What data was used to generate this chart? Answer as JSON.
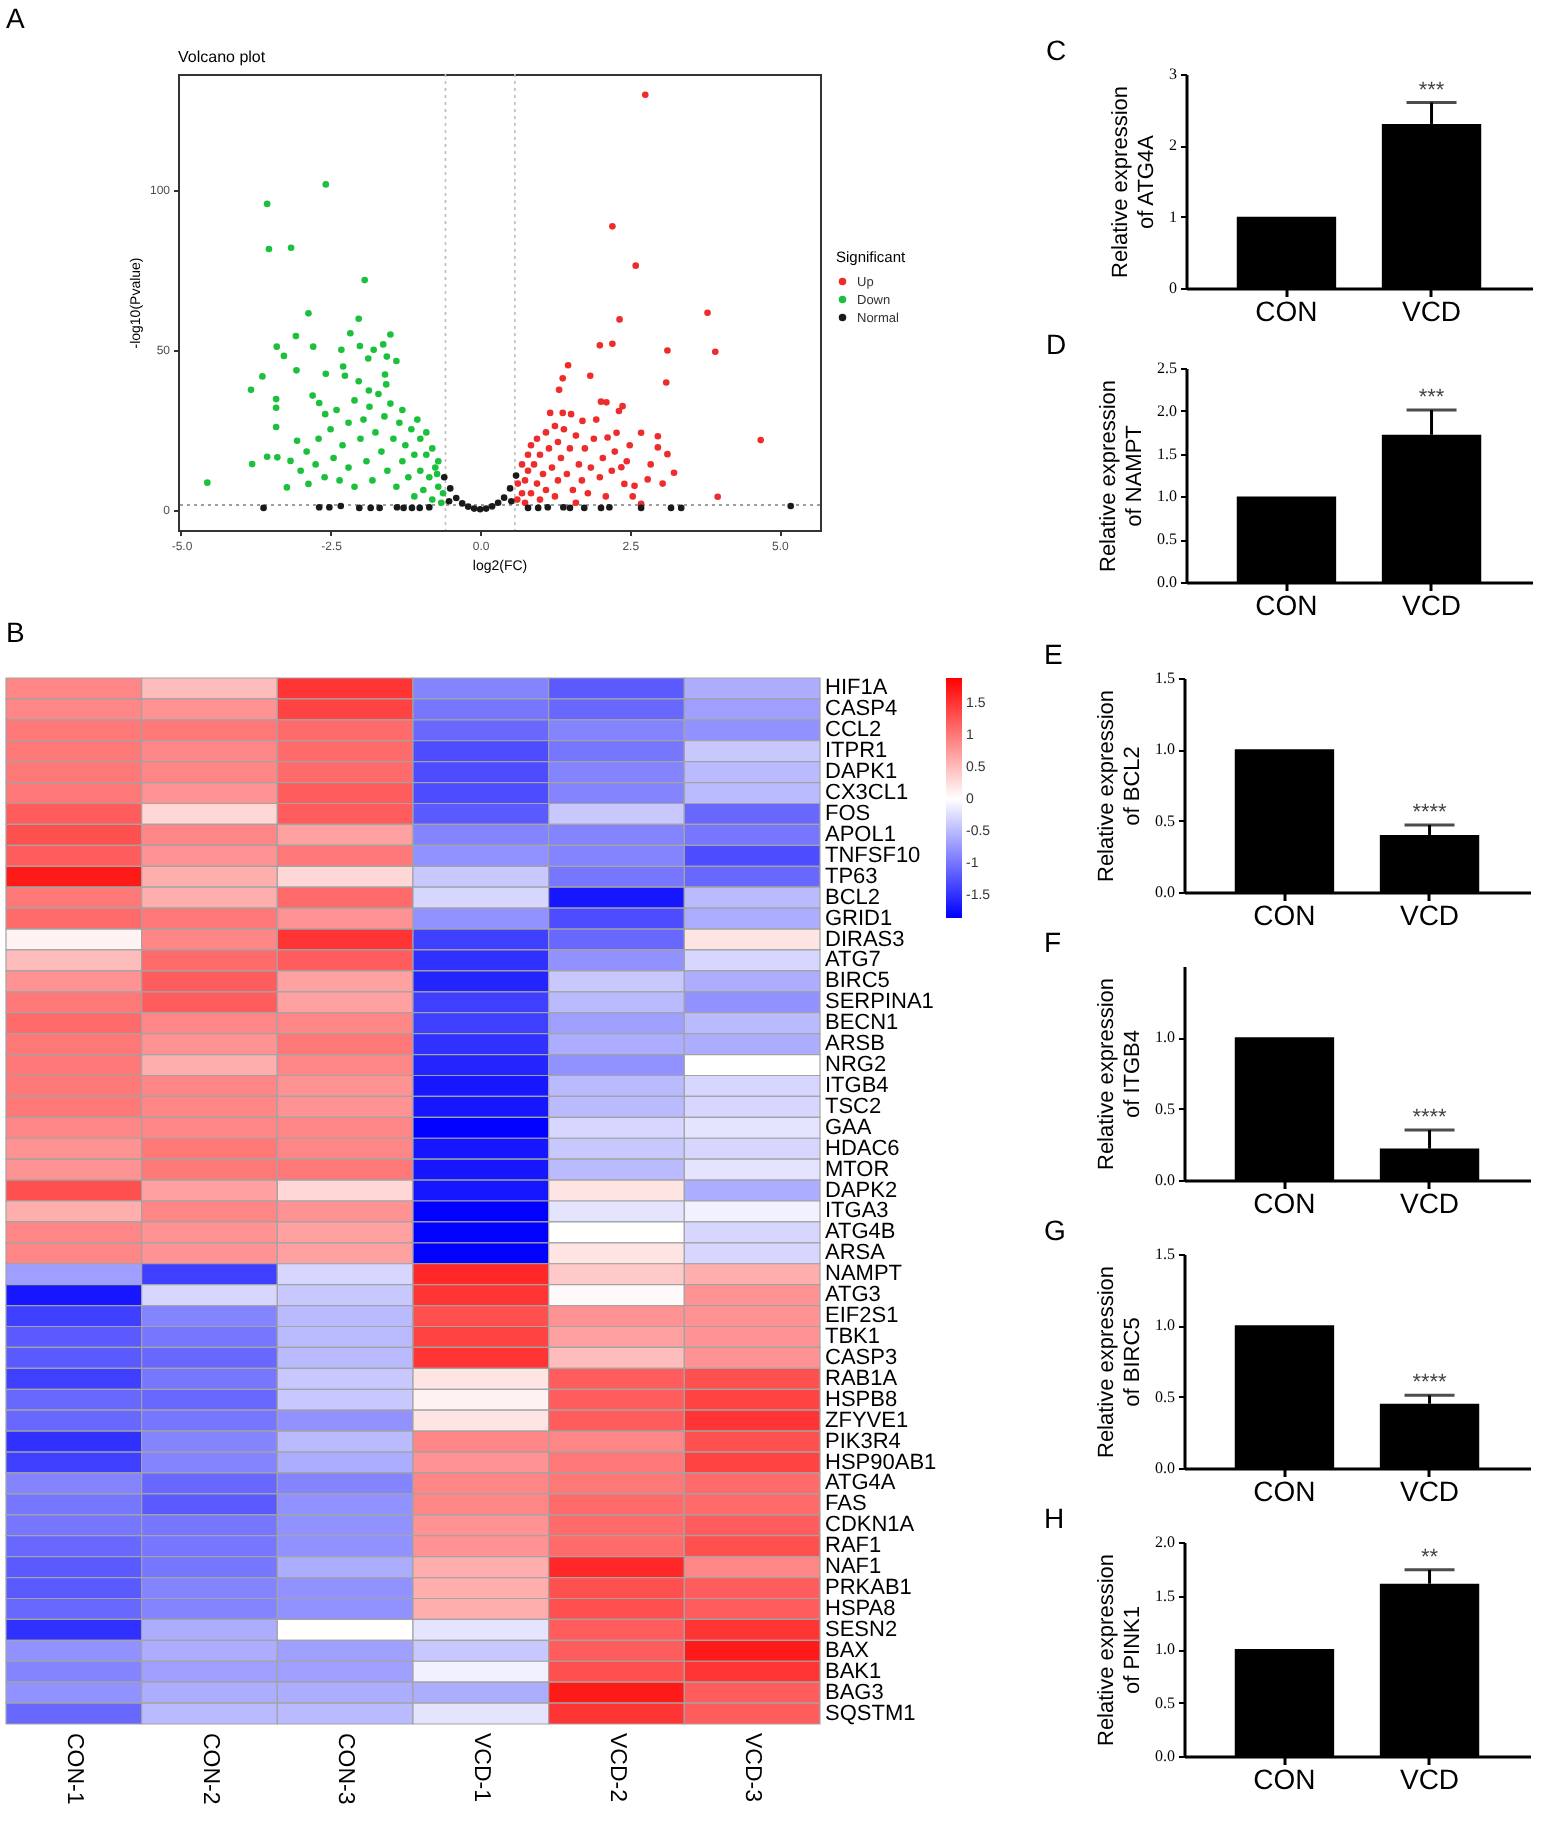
{
  "chart_data": [
    {
      "type": "scatter",
      "title": "Volcano plot",
      "annotations": [
        "A"
      ],
      "xlabel": "log2(FC)",
      "ylabel": "-log10(Pvalue)",
      "legend_title": "Significant",
      "legend": "right",
      "marker": "circle",
      "xlim": [
        -5.05,
        5.68
      ],
      "ylim": [
        -6.5,
        136
      ],
      "xticks": [
        {
          "value": -5,
          "label": "-5.0"
        },
        -2.5,
        {
          "value": 0,
          "label": "0.0"
        },
        2.5,
        {
          "value": 5,
          "label": "5.0"
        }
      ],
      "yticks": [
        0,
        50,
        100
      ],
      "ref_lines": [
        {
          "axis": "x",
          "value": -0.58,
          "color": "#bdbdbd",
          "line_style": "dotted"
        },
        {
          "axis": "x",
          "value": 0.58,
          "color": "#bdbdbd",
          "line_style": "dotted"
        },
        {
          "axis": "y",
          "value": 1.3,
          "color": "#7f7f7f",
          "line_style": "dotted"
        }
      ],
      "series": [
        {
          "name": "Up",
          "color": "#ee2c2c",
          "x": [
            2.76,
            2.21,
            2.6,
            3.8,
            2.33,
            3.93,
            3.13,
            2.21,
            2.0,
            3.11,
            1.47,
            1.38,
            1.84,
            1.32,
            4.69,
            3.97,
            2.69,
            2.97,
            3.13,
            2.97,
            2.69,
            2.38,
            2.32,
            3.24,
            2.8,
            2.58,
            2.41,
            2.36,
            2.02,
            2.11,
            1.94,
            2.13,
            2.28,
            1.71,
            1.52,
            1.38,
            1.17,
            0.62,
            0.63,
            1.6,
            0.7,
            0.7,
            0.75,
            0.75,
            0.8,
            0.8,
            0.85,
            0.85,
            0.9,
            0.95,
            0.95,
            1.0,
            1.0,
            1.05,
            1.1,
            1.1,
            1.15,
            1.2,
            1.25,
            1.25,
            1.3,
            1.3,
            1.35,
            1.4,
            1.45,
            1.5,
            1.55,
            1.6,
            1.65,
            1.7,
            1.75,
            1.8,
            1.85,
            1.9,
            2.0,
            2.05,
            2.1,
            2.2,
            2.25,
            2.45,
            2.5,
            2.55,
            2.85,
            3.05
          ],
          "values": [
            129.5,
            88.4,
            76.1,
            61.4,
            59.3,
            49.2,
            49.6,
            51.7,
            51.2,
            39.6,
            45.0,
            40.9,
            41.7,
            37.3,
            21.6,
            3.9,
            1.7,
            19.3,
            17.2,
            22.8,
            23.9,
            32.2,
            30.7,
            11.4,
            9.3,
            7.3,
            7.9,
            13.1,
            33.6,
            33.4,
            28.0,
            22.4,
            23.9,
            27.6,
            29.7,
            30.1,
            30.1,
            3,
            8,
            2,
            5,
            14,
            2,
            9,
            17,
            12,
            5,
            20,
            14,
            8,
            22,
            3,
            17,
            11,
            24,
            6,
            19,
            13,
            26,
            4,
            9,
            21,
            16,
            25,
            11,
            19,
            6,
            23,
            14,
            9,
            19,
            5,
            13,
            22,
            10,
            16,
            4,
            12,
            18,
            15,
            20,
            4,
            14,
            8
          ]
        },
        {
          "name": "Down",
          "color": "#1bc13c",
          "x": [
            -4.56,
            -3.83,
            -3.64,
            -3.56,
            -3.53,
            -3.16,
            -2.58,
            -1.93,
            -2.87,
            -2.03,
            -3.4,
            -3.28,
            -3.08,
            -2.79,
            -3.07,
            -3.81,
            -3.56,
            -3.39,
            -3.41,
            -3.41,
            -3.41,
            -2.58,
            -2.32,
            -2.17,
            -2.01,
            -1.87,
            -2.29,
            -2.26,
            -2.03,
            -1.78,
            -1.62,
            -1.5,
            -1.56,
            -1.4,
            -1.59,
            -1.86,
            -1.57,
            -2.8,
            -2.69,
            -2.59,
            -3.06,
            -3.17,
            -3.23,
            -2.87,
            -3.0,
            -2.9,
            -2.75,
            -2.7,
            -2.6,
            -2.5,
            -2.45,
            -2.4,
            -2.35,
            -2.3,
            -2.2,
            -2.2,
            -2.1,
            -2.1,
            -2.0,
            -1.95,
            -1.9,
            -1.85,
            -1.8,
            -1.75,
            -1.7,
            -1.65,
            -1.6,
            -1.55,
            -1.5,
            -1.45,
            -1.4,
            -1.35,
            -1.3,
            -1.3,
            -1.25,
            -1.2,
            -1.15,
            -1.1,
            -1.1,
            -1.05,
            -1.0,
            -1.0,
            -0.95,
            -0.9,
            -0.9,
            -0.85,
            -0.8,
            -0.8,
            -0.75,
            -0.7,
            -0.7,
            -0.65,
            -0.72,
            -0.62
          ],
          "values": [
            8.3,
            37.3,
            41.5,
            95.4,
            81.3,
            81.7,
            101.5,
            71.6,
            61.2,
            59.5,
            50.8,
            47.9,
            54.1,
            50.8,
            43.4,
            14.1,
            16.4,
            16.2,
            34.4,
            31.7,
            25.7,
            42.3,
            49.8,
            55.0,
            51.0,
            47.1,
            44.6,
            41.7,
            40.0,
            49.8,
            51.5,
            54.6,
            47.7,
            46.3,
            42.1,
            37.1,
            39.0,
            35.5,
            33.2,
            29.7,
            21.4,
            15.1,
            6.8,
            7.9,
            12,
            18,
            14,
            22,
            10,
            25,
            16,
            31,
            9,
            20,
            27,
            13,
            34,
            7,
            22,
            28,
            15,
            32,
            9,
            24,
            36,
            18,
            29,
            12,
            33,
            22,
            7,
            27,
            15,
            31,
            20,
            10,
            25,
            4,
            17,
            28,
            12,
            22,
            6,
            17,
            24,
            10,
            3,
            19,
            13,
            7,
            15,
            2,
            11,
            5
          ]
        },
        {
          "name": "Normal",
          "color": "#1a1a1a",
          "x": [
            -0.6,
            -0.5,
            -0.52,
            -0.4,
            -0.3,
            -0.2,
            -0.1,
            0,
            0.1,
            0.2,
            0.3,
            0.4,
            0.52,
            0.5,
            0.6,
            -3.62,
            -2.69,
            -2.52,
            -2.33,
            -2.02,
            -1.83,
            -1.68,
            -1.39,
            -1.28,
            -1.14,
            -1.01,
            -0.85,
            0.8,
            0.97,
            1.13,
            1.39,
            1.5,
            1.74,
            2.02,
            2.16,
            2.69,
            3.19,
            3.36,
            5.19
          ],
          "values": [
            10,
            6.5,
            2.5,
            3.5,
            1.8,
            0.8,
            0.2,
            0,
            0.2,
            0.9,
            2,
            3.6,
            2.5,
            6.5,
            10.5,
            0.4,
            0.6,
            0.6,
            1.0,
            0.4,
            0.4,
            0.4,
            0.6,
            0.4,
            0.4,
            0.4,
            0.6,
            0.4,
            0.4,
            0.6,
            0.6,
            0.4,
            0.4,
            0.4,
            0.6,
            0.4,
            0.4,
            0.4,
            1.0
          ]
        }
      ]
    },
    {
      "type": "heatmap",
      "annotations": [
        "B"
      ],
      "categories": [
        "CON-1",
        "CON-2",
        "CON-3",
        "VCD-1",
        "VCD-2",
        "VCD-3"
      ],
      "y_categories": [
        "HIF1A",
        "CASP4",
        "CCL2",
        "ITPR1",
        "DAPK1",
        "CX3CL1",
        "FOS",
        "APOL1",
        "TNFSF10",
        "TP63",
        "BCL2",
        "GRID1",
        "DIRAS3",
        "ATG7",
        "BIRC5",
        "SERPINA1",
        "BECN1",
        "ARSB",
        "NRG2",
        "ITGB4",
        "TSC2",
        "GAA",
        "HDAC6",
        "MTOR",
        "DAPK2",
        "ITGA3",
        "ATG4B",
        "ARSA",
        "NAMPT",
        "ATG3",
        "EIF2S1",
        "TBK1",
        "CASP3",
        "RAB1A",
        "HSPB8",
        "ZFYVE1",
        "PIK3R4",
        "HSP90AB1",
        "ATG4A",
        "FAS",
        "CDKN1A",
        "RAF1",
        "NAF1",
        "PRKAB1",
        "HSPA8",
        "SESN2",
        "BAX",
        "BAK1",
        "BAG3",
        "SQSTM1"
      ],
      "cells": [
        [
          0.9,
          0.5,
          1.5,
          -0.9,
          -1.2,
          -0.6
        ],
        [
          0.9,
          0.8,
          1.4,
          -1.0,
          -1.1,
          -0.7
        ],
        [
          1.0,
          1.0,
          1.1,
          -1.1,
          -0.9,
          -0.8
        ],
        [
          1.0,
          0.9,
          1.1,
          -1.3,
          -1.0,
          -0.4
        ],
        [
          1.0,
          0.9,
          1.1,
          -1.3,
          -0.9,
          -0.5
        ],
        [
          1.0,
          0.8,
          1.2,
          -1.3,
          -0.9,
          -0.5
        ],
        [
          1.2,
          0.3,
          1.2,
          -1.2,
          -0.4,
          -1.1
        ],
        [
          1.3,
          0.9,
          0.7,
          -0.9,
          -0.9,
          -1.0
        ],
        [
          1.2,
          0.8,
          1.0,
          -0.8,
          -0.9,
          -1.3
        ],
        [
          1.7,
          0.6,
          0.3,
          -0.4,
          -1.0,
          -1.1
        ],
        [
          1.0,
          0.6,
          1.1,
          -0.3,
          -1.7,
          -0.5
        ],
        [
          1.1,
          1.0,
          0.8,
          -0.8,
          -1.3,
          -0.6
        ],
        [
          0.1,
          0.9,
          1.5,
          -1.4,
          -1.1,
          0.2
        ],
        [
          0.5,
          1.1,
          1.2,
          -1.5,
          -0.8,
          -0.3
        ],
        [
          0.8,
          1.2,
          0.7,
          -1.6,
          -0.4,
          -0.6
        ],
        [
          1.0,
          1.2,
          0.7,
          -1.4,
          -0.5,
          -0.8
        ],
        [
          1.1,
          0.9,
          0.9,
          -1.4,
          -0.7,
          -0.5
        ],
        [
          1.0,
          0.8,
          1.0,
          -1.5,
          -0.6,
          -0.6
        ],
        [
          1.0,
          0.6,
          0.9,
          -1.6,
          -0.8,
          0.0
        ],
        [
          1.0,
          0.9,
          0.8,
          -1.7,
          -0.5,
          -0.3
        ],
        [
          1.0,
          0.9,
          0.8,
          -1.7,
          -0.5,
          -0.3
        ],
        [
          0.9,
          0.9,
          0.9,
          -1.85,
          -0.3,
          -0.2
        ],
        [
          0.8,
          1.0,
          0.9,
          -1.7,
          -0.4,
          -0.3
        ],
        [
          0.8,
          1.0,
          1.0,
          -1.7,
          -0.5,
          -0.2
        ],
        [
          1.3,
          0.7,
          0.3,
          -1.7,
          0.2,
          -0.6
        ],
        [
          0.6,
          0.9,
          0.8,
          -1.85,
          -0.2,
          -0.1
        ],
        [
          0.9,
          0.8,
          0.7,
          -1.85,
          0.0,
          -0.3
        ],
        [
          0.9,
          0.8,
          0.7,
          -1.85,
          0.2,
          -0.3
        ],
        [
          -0.7,
          -1.4,
          -0.3,
          1.6,
          0.4,
          0.6
        ],
        [
          -1.7,
          -0.3,
          -0.4,
          1.5,
          0.05,
          0.8
        ],
        [
          -1.4,
          -0.9,
          -0.5,
          1.3,
          0.8,
          0.8
        ],
        [
          -1.2,
          -1.0,
          -0.5,
          1.4,
          0.7,
          0.8
        ],
        [
          -1.2,
          -1.1,
          -0.5,
          1.5,
          0.5,
          0.8
        ],
        [
          -1.4,
          -1.0,
          -0.4,
          0.2,
          1.2,
          1.3
        ],
        [
          -1.1,
          -1.1,
          -0.4,
          0.1,
          1.2,
          1.4
        ],
        [
          -1.1,
          -1.0,
          -0.8,
          0.2,
          1.2,
          1.5
        ],
        [
          -1.5,
          -0.9,
          -0.5,
          0.9,
          0.9,
          1.3
        ],
        [
          -1.4,
          -0.9,
          -0.6,
          0.8,
          1.0,
          1.4
        ],
        [
          -0.9,
          -1.1,
          -0.9,
          0.9,
          1.0,
          1.1
        ],
        [
          -1.0,
          -1.2,
          -0.8,
          0.9,
          1.1,
          1.1
        ],
        [
          -1.0,
          -1.0,
          -0.8,
          0.8,
          1.1,
          1.2
        ],
        [
          -1.1,
          -1.0,
          -0.8,
          0.8,
          1.1,
          1.3
        ],
        [
          -1.2,
          -1.0,
          -0.6,
          0.6,
          1.6,
          0.9
        ],
        [
          -1.2,
          -0.9,
          -0.8,
          0.6,
          1.3,
          1.2
        ],
        [
          -1.1,
          -0.9,
          -0.8,
          0.6,
          1.3,
          1.2
        ],
        [
          -1.5,
          -0.6,
          0.0,
          -0.2,
          1.2,
          1.5
        ],
        [
          -0.8,
          -0.6,
          -0.7,
          -0.4,
          1.2,
          1.7
        ],
        [
          -0.9,
          -0.7,
          -0.7,
          -0.1,
          1.3,
          1.5
        ],
        [
          -0.8,
          -0.6,
          -0.6,
          -0.6,
          1.7,
          1.2
        ],
        [
          -1.1,
          -0.5,
          -0.5,
          -0.2,
          1.5,
          1.2
        ]
      ],
      "clim": [
        -1.86,
        1.89
      ],
      "cticks": [
        -1.5,
        -1,
        -0.5,
        0,
        0.5,
        1,
        1.5
      ]
    },
    {
      "type": "bar",
      "annotations": [
        "C",
        {
          "text": "***",
          "x": "VCD",
          "y": 2.6
        }
      ],
      "ylabel": "Relative expression of ATG4A",
      "categories": [
        "CON",
        "VCD"
      ],
      "values": [
        1,
        2.3
      ],
      "errors": [
        null,
        [
          2.3,
          2.6
        ]
      ],
      "color": "#000000",
      "ylim": [
        0,
        3
      ],
      "yticks": [
        0,
        1,
        2,
        3
      ]
    },
    {
      "type": "bar",
      "annotations": [
        "D",
        {
          "text": "***",
          "x": "VCD",
          "y": 2.01
        }
      ],
      "ylabel": "Relative expression of NAMPT",
      "categories": [
        "CON",
        "VCD"
      ],
      "values": [
        1,
        1.72
      ],
      "errors": [
        null,
        [
          1.72,
          2.01
        ]
      ],
      "color": "#000000",
      "ylim": [
        0,
        2.5
      ],
      "yticks": [
        {
          "value": 0,
          "label": "0.0"
        },
        0.5,
        {
          "value": 1,
          "label": "1.0"
        },
        1.5,
        {
          "value": 2,
          "label": "2.0"
        },
        2.5
      ]
    },
    {
      "type": "bar",
      "annotations": [
        "E",
        {
          "text": "****",
          "x": "VCD",
          "y": 0.47
        }
      ],
      "ylabel": "Relative expression of BCL2",
      "categories": [
        "CON",
        "VCD"
      ],
      "values": [
        1,
        0.4
      ],
      "errors": [
        null,
        [
          0.4,
          0.47
        ]
      ],
      "color": "#000000",
      "ylim": [
        0,
        1.5
      ],
      "yticks": [
        {
          "value": 0,
          "label": "0.0"
        },
        0.5,
        {
          "value": 1,
          "label": "1.0"
        },
        1.5
      ]
    },
    {
      "type": "bar",
      "annotations": [
        "F",
        {
          "text": "****",
          "x": "VCD",
          "y": 0.35
        }
      ],
      "ylabel": "Relative expression of ITGB4",
      "categories": [
        "CON",
        "VCD"
      ],
      "values": [
        1,
        0.22
      ],
      "errors": [
        null,
        [
          0.22,
          0.35
        ]
      ],
      "color": "#000000",
      "ylim": [
        0,
        1.5
      ],
      "yticks": [
        {
          "value": 0,
          "label": "0.0"
        },
        0.5,
        {
          "value": 1,
          "label": "1.0"
        }
      ]
    },
    {
      "type": "bar",
      "annotations": [
        "G",
        {
          "text": "****",
          "x": "VCD",
          "y": 0.51
        }
      ],
      "ylabel": "Relative expression of BIRC5",
      "categories": [
        "CON",
        "VCD"
      ],
      "values": [
        1,
        0.45
      ],
      "errors": [
        null,
        [
          0.45,
          0.51
        ]
      ],
      "color": "#000000",
      "ylim": [
        0,
        1.5
      ],
      "yticks": [
        {
          "value": 0,
          "label": "0.0"
        },
        0.5,
        {
          "value": 1,
          "label": "1.0"
        },
        1.5
      ]
    },
    {
      "type": "bar",
      "annotations": [
        "H",
        {
          "text": "**",
          "x": "VCD",
          "y": 1.74
        }
      ],
      "ylabel": "Relative expression of PINK1",
      "categories": [
        "CON",
        "VCD"
      ],
      "values": [
        1,
        1.61
      ],
      "errors": [
        null,
        [
          1.61,
          1.74
        ]
      ],
      "color": "#000000",
      "ylim": [
        0,
        2
      ],
      "yticks": [
        {
          "value": 0,
          "label": "0.0"
        },
        0.5,
        {
          "value": 1,
          "label": "1.0"
        },
        1.5,
        {
          "value": 2,
          "label": "2.0"
        }
      ]
    }
  ]
}
